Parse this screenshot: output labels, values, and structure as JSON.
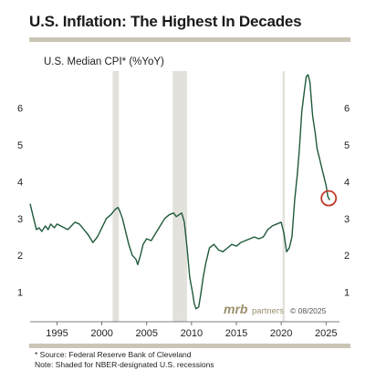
{
  "header": {
    "title": "U.S. Inflation: The Highest In Decades"
  },
  "footer": {
    "source": "* Source: Federal Reserve Bank of Cleveland",
    "note": "Note: Shaded for NBER-designated U.S. recessions"
  },
  "chart_data": {
    "type": "line",
    "title": "U.S. Median CPI* (%YoY)",
    "xlabel": "",
    "ylabel": "",
    "xlim": [
      1992.0,
      2026.5
    ],
    "ylim": [
      0.2,
      7.0
    ],
    "x_ticks": [
      1995,
      2000,
      2005,
      2010,
      2015,
      2020,
      2025
    ],
    "y_ticks": [
      1,
      2,
      3,
      4,
      5,
      6
    ],
    "grid": false,
    "recessions": [
      [
        2001.2,
        2001.9
      ],
      [
        2007.9,
        2009.5
      ],
      [
        2020.15,
        2020.4
      ]
    ],
    "series": [
      {
        "color": "#1f5a3a",
        "x": [
          1992.0,
          1992.3,
          1992.7,
          1993.0,
          1993.3,
          1993.7,
          1994.0,
          1994.3,
          1994.7,
          1995.0,
          1995.4,
          1995.8,
          1996.2,
          1996.6,
          1997.0,
          1997.5,
          1998.0,
          1998.5,
          1999.0,
          1999.5,
          2000.0,
          2000.5,
          2001.0,
          2001.5,
          2001.8,
          2002.0,
          2002.3,
          2002.7,
          2003.0,
          2003.4,
          2003.8,
          2004.0,
          2004.3,
          2004.6,
          2005.0,
          2005.5,
          2006.0,
          2006.5,
          2007.0,
          2007.5,
          2008.0,
          2008.3,
          2008.6,
          2008.9,
          2009.2,
          2009.5,
          2009.8,
          2010.1,
          2010.3,
          2010.5,
          2010.8,
          2011.0,
          2011.3,
          2011.6,
          2012.0,
          2012.5,
          2013.0,
          2013.5,
          2014.0,
          2014.5,
          2015.0,
          2015.5,
          2016.0,
          2016.5,
          2017.0,
          2017.5,
          2018.0,
          2018.5,
          2019.0,
          2019.5,
          2020.0,
          2020.3,
          2020.6,
          2020.9,
          2021.2,
          2021.5,
          2021.8,
          2022.0,
          2022.3,
          2022.6,
          2022.8,
          2023.0,
          2023.2,
          2023.5,
          2023.8,
          2024.0,
          2024.3,
          2024.6,
          2024.8,
          2025.0,
          2025.2,
          2025.4
        ],
        "values": [
          3.4,
          3.1,
          2.7,
          2.75,
          2.65,
          2.8,
          2.7,
          2.85,
          2.75,
          2.85,
          2.8,
          2.75,
          2.7,
          2.8,
          2.9,
          2.85,
          2.7,
          2.55,
          2.35,
          2.5,
          2.75,
          3.0,
          3.1,
          3.25,
          3.3,
          3.2,
          3.0,
          2.6,
          2.3,
          2.0,
          1.9,
          1.75,
          2.0,
          2.3,
          2.45,
          2.4,
          2.6,
          2.8,
          3.0,
          3.1,
          3.15,
          3.05,
          3.1,
          3.15,
          2.9,
          2.2,
          1.4,
          1.0,
          0.7,
          0.55,
          0.6,
          0.9,
          1.4,
          1.8,
          2.2,
          2.3,
          2.15,
          2.1,
          2.2,
          2.3,
          2.25,
          2.35,
          2.4,
          2.45,
          2.5,
          2.45,
          2.5,
          2.7,
          2.8,
          2.85,
          2.9,
          2.6,
          2.1,
          2.2,
          2.5,
          3.5,
          4.2,
          4.8,
          5.9,
          6.5,
          6.85,
          6.9,
          6.7,
          5.8,
          5.3,
          4.9,
          4.6,
          4.3,
          4.1,
          3.9,
          3.6,
          3.5
        ]
      }
    ],
    "highlight": {
      "x": 2025.3,
      "y": 3.55,
      "color": "#c0392b"
    }
  },
  "brand": {
    "mark": "mrb",
    "word": "partners",
    "copyright": "© 08/2025"
  }
}
